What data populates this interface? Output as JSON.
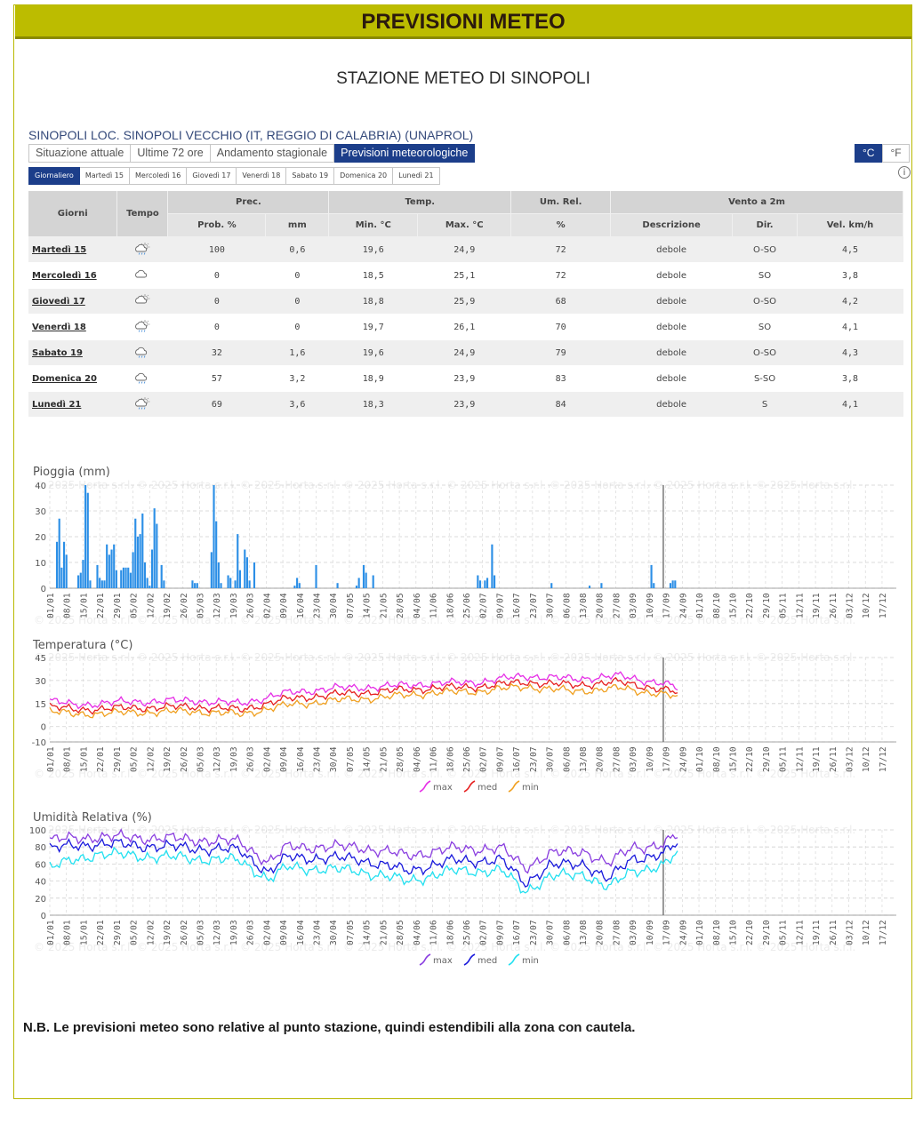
{
  "banner_title": "PREVISIONI METEO",
  "station_title": "STAZIONE METEO DI SINOPOLI",
  "location": "SINOPOLI LOC. SINOPOLI VECCHIO (IT, REGGIO DI CALABRIA) (UNAPROL)",
  "tabs": [
    "Situazione attuale",
    "Ultime 72 ore",
    "Andamento stagionale",
    "Previsioni meteorologiche"
  ],
  "active_tab": 3,
  "units": [
    "°C",
    "°F"
  ],
  "day_tabs": [
    "Giornaliero",
    "Martedì 15",
    "Mercoledì 16",
    "Giovedì 17",
    "Venerdì 18",
    "Sabato 19",
    "Domenica 20",
    "Lunedì 21"
  ],
  "table": {
    "headers": {
      "giorni": "Giorni",
      "tempo": "Tempo",
      "prec": "Prec.",
      "temp": "Temp.",
      "umrel": "Um. Rel.",
      "vento": "Vento a 2m",
      "prob": "Prob. %",
      "mm": "mm",
      "min": "Min. °C",
      "max": "Max. °C",
      "pct": "%",
      "descr": "Descrizione",
      "dir": "Dir.",
      "vel": "Vel. km/h"
    },
    "rows": [
      {
        "day": "Martedì 15",
        "icon": "sun-cloud-rain-icon",
        "prob": "100",
        "mm": "0,6",
        "min": "19,6",
        "max": "24,9",
        "um": "72",
        "descr": "debole",
        "dir": "O-SO",
        "vel": "4,5"
      },
      {
        "day": "Mercoledì 16",
        "icon": "cloud-icon",
        "prob": "0",
        "mm": "0",
        "min": "18,5",
        "max": "25,1",
        "um": "72",
        "descr": "debole",
        "dir": "SO",
        "vel": "3,8"
      },
      {
        "day": "Giovedì 17",
        "icon": "sun-cloud-icon",
        "prob": "0",
        "mm": "0",
        "min": "18,8",
        "max": "25,9",
        "um": "68",
        "descr": "debole",
        "dir": "O-SO",
        "vel": "4,2"
      },
      {
        "day": "Venerdì 18",
        "icon": "sun-cloud-rain-icon",
        "prob": "0",
        "mm": "0",
        "min": "19,7",
        "max": "26,1",
        "um": "70",
        "descr": "debole",
        "dir": "SO",
        "vel": "4,1"
      },
      {
        "day": "Sabato 19",
        "icon": "cloud-rain-icon",
        "prob": "32",
        "mm": "1,6",
        "min": "19,6",
        "max": "24,9",
        "um": "79",
        "descr": "debole",
        "dir": "O-SO",
        "vel": "4,3"
      },
      {
        "day": "Domenica 20",
        "icon": "cloud-rain-icon",
        "prob": "57",
        "mm": "3,2",
        "min": "18,9",
        "max": "23,9",
        "um": "83",
        "descr": "debole",
        "dir": "S-SO",
        "vel": "3,8"
      },
      {
        "day": "Lunedì 21",
        "icon": "sun-cloud-rain-icon",
        "prob": "69",
        "mm": "3,6",
        "min": "18,3",
        "max": "23,9",
        "um": "84",
        "descr": "debole",
        "dir": "S",
        "vel": "4,1"
      }
    ]
  },
  "watermark": "© 2025 Horta s.r.l.",
  "note": "N.B. Le previsioni meteo sono relative al punto stazione, quindi estendibili alla zona con cautela.",
  "chart_data": [
    {
      "type": "bar",
      "title": "Pioggia (mm)",
      "ylim": [
        0,
        40
      ],
      "yticks": [
        0,
        10,
        20,
        30,
        40
      ],
      "x_tick_labels": [
        "01/01",
        "08/01",
        "15/01",
        "22/01",
        "29/01",
        "05/02",
        "12/02",
        "19/02",
        "26/02",
        "05/03",
        "12/03",
        "19/03",
        "26/03",
        "02/04",
        "09/04",
        "16/04",
        "23/04",
        "30/04",
        "07/05",
        "14/05",
        "21/05",
        "28/05",
        "04/06",
        "11/06",
        "18/06",
        "25/06",
        "02/07",
        "09/07",
        "16/07",
        "23/07",
        "30/07",
        "06/08",
        "13/08",
        "20/08",
        "27/08",
        "03/09",
        "10/09",
        "17/09",
        "24/09",
        "01/10",
        "08/10",
        "15/10",
        "22/10",
        "29/10",
        "05/11",
        "12/11",
        "19/11",
        "26/11",
        "03/12",
        "10/12",
        "17/12"
      ],
      "today_day": 258,
      "color": "#2c8fe6",
      "bars": [
        [
          3,
          18
        ],
        [
          4,
          27
        ],
        [
          5,
          8
        ],
        [
          6,
          18
        ],
        [
          7,
          13
        ],
        [
          12,
          5
        ],
        [
          13,
          6
        ],
        [
          14,
          11
        ],
        [
          15,
          40
        ],
        [
          16,
          37
        ],
        [
          17,
          3
        ],
        [
          20,
          9
        ],
        [
          21,
          4
        ],
        [
          22,
          3
        ],
        [
          23,
          3
        ],
        [
          24,
          17
        ],
        [
          25,
          13
        ],
        [
          26,
          15
        ],
        [
          27,
          17
        ],
        [
          28,
          7
        ],
        [
          30,
          7
        ],
        [
          31,
          8
        ],
        [
          32,
          8
        ],
        [
          33,
          8
        ],
        [
          34,
          6
        ],
        [
          35,
          14
        ],
        [
          36,
          27
        ],
        [
          37,
          20
        ],
        [
          38,
          21
        ],
        [
          39,
          29
        ],
        [
          40,
          10
        ],
        [
          41,
          4
        ],
        [
          42,
          1
        ],
        [
          43,
          15
        ],
        [
          44,
          31
        ],
        [
          45,
          25
        ],
        [
          47,
          9
        ],
        [
          48,
          3
        ],
        [
          60,
          3
        ],
        [
          61,
          2
        ],
        [
          62,
          2
        ],
        [
          68,
          14
        ],
        [
          69,
          40
        ],
        [
          70,
          26
        ],
        [
          71,
          10
        ],
        [
          72,
          2
        ],
        [
          75,
          5
        ],
        [
          76,
          4
        ],
        [
          78,
          3
        ],
        [
          79,
          21
        ],
        [
          80,
          7
        ],
        [
          82,
          15
        ],
        [
          83,
          12
        ],
        [
          84,
          3
        ],
        [
          86,
          10
        ],
        [
          103,
          1
        ],
        [
          104,
          4
        ],
        [
          105,
          2
        ],
        [
          112,
          9
        ],
        [
          121,
          2
        ],
        [
          129,
          1
        ],
        [
          130,
          4
        ],
        [
          132,
          9
        ],
        [
          133,
          6
        ],
        [
          136,
          5
        ],
        [
          180,
          5
        ],
        [
          181,
          3
        ],
        [
          183,
          3
        ],
        [
          184,
          4
        ],
        [
          186,
          17
        ],
        [
          187,
          5
        ],
        [
          211,
          2
        ],
        [
          227,
          1
        ],
        [
          232,
          2
        ],
        [
          253,
          9
        ],
        [
          254,
          2
        ],
        [
          261,
          2
        ],
        [
          262,
          3
        ],
        [
          263,
          3
        ]
      ]
    },
    {
      "type": "line",
      "title": "Temperatura (°C)",
      "ylim": [
        -10,
        45
      ],
      "yticks": [
        -10,
        0,
        15,
        30,
        45
      ],
      "today_day": 258,
      "series": [
        {
          "name": "max",
          "color": "#e62ee6",
          "anchors": [
            [
              0,
              17
            ],
            [
              10,
              14
            ],
            [
              30,
              16
            ],
            [
              60,
              17
            ],
            [
              80,
              15
            ],
            [
              100,
              22
            ],
            [
              120,
              25
            ],
            [
              140,
              26
            ],
            [
              160,
              28
            ],
            [
              180,
              29
            ],
            [
              200,
              33
            ],
            [
              220,
              31
            ],
            [
              240,
              33
            ],
            [
              258,
              28
            ],
            [
              264,
              25
            ]
          ]
        },
        {
          "name": "med",
          "color": "#e62020",
          "anchors": [
            [
              0,
              13
            ],
            [
              10,
              11
            ],
            [
              30,
              12
            ],
            [
              60,
              13
            ],
            [
              80,
              11
            ],
            [
              100,
              18
            ],
            [
              120,
              21
            ],
            [
              140,
              23
            ],
            [
              160,
              25
            ],
            [
              180,
              26
            ],
            [
              200,
              29
            ],
            [
              220,
              27
            ],
            [
              240,
              29
            ],
            [
              258,
              24
            ],
            [
              264,
              22
            ]
          ]
        },
        {
          "name": "min",
          "color": "#f0a020",
          "anchors": [
            [
              0,
              10
            ],
            [
              10,
              8
            ],
            [
              30,
              9
            ],
            [
              60,
              10
            ],
            [
              80,
              8
            ],
            [
              100,
              14
            ],
            [
              120,
              17
            ],
            [
              140,
              19
            ],
            [
              160,
              22
            ],
            [
              180,
              23
            ],
            [
              200,
              26
            ],
            [
              220,
              23
            ],
            [
              240,
              25
            ],
            [
              258,
              21
            ],
            [
              264,
              19
            ]
          ]
        }
      ]
    },
    {
      "type": "line",
      "title": "Umidità Relativa (%)",
      "ylim": [
        0,
        100
      ],
      "yticks": [
        0,
        20,
        40,
        60,
        80,
        100
      ],
      "today_day": 258,
      "series": [
        {
          "name": "max",
          "color": "#8a3ee0",
          "anchors": [
            [
              0,
              88
            ],
            [
              20,
              92
            ],
            [
              50,
              90
            ],
            [
              80,
              86
            ],
            [
              92,
              62
            ],
            [
              100,
              80
            ],
            [
              130,
              80
            ],
            [
              150,
              70
            ],
            [
              170,
              78
            ],
            [
              190,
              78
            ],
            [
              200,
              56
            ],
            [
              210,
              72
            ],
            [
              225,
              75
            ],
            [
              235,
              60
            ],
            [
              245,
              80
            ],
            [
              258,
              82
            ],
            [
              264,
              94
            ]
          ]
        },
        {
          "name": "med",
          "color": "#1a1adc",
          "anchors": [
            [
              0,
              78
            ],
            [
              20,
              84
            ],
            [
              50,
              80
            ],
            [
              80,
              76
            ],
            [
              92,
              50
            ],
            [
              100,
              68
            ],
            [
              130,
              66
            ],
            [
              150,
              52
            ],
            [
              170,
              64
            ],
            [
              190,
              64
            ],
            [
              200,
              38
            ],
            [
              210,
              58
            ],
            [
              225,
              60
            ],
            [
              235,
              42
            ],
            [
              245,
              66
            ],
            [
              258,
              72
            ],
            [
              264,
              84
            ]
          ]
        },
        {
          "name": "min",
          "color": "#22e0f0",
          "anchors": [
            [
              0,
              56
            ],
            [
              20,
              72
            ],
            [
              50,
              68
            ],
            [
              80,
              64
            ],
            [
              92,
              42
            ],
            [
              100,
              56
            ],
            [
              130,
              52
            ],
            [
              150,
              40
            ],
            [
              170,
              52
            ],
            [
              190,
              52
            ],
            [
              200,
              28
            ],
            [
              210,
              45
            ],
            [
              225,
              48
            ],
            [
              235,
              32
            ],
            [
              245,
              52
            ],
            [
              258,
              58
            ],
            [
              264,
              72
            ]
          ]
        }
      ]
    }
  ]
}
